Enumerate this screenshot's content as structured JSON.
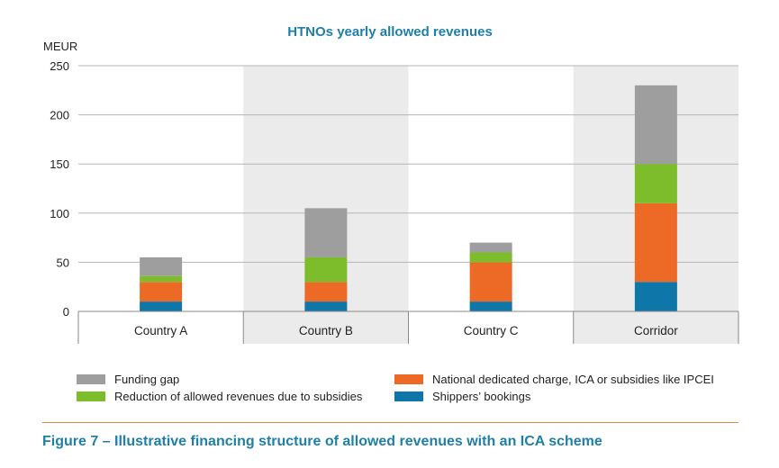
{
  "chart_data": {
    "type": "bar",
    "stacked": true,
    "title": "HTNOs yearly allowed revenues",
    "ylabel": "MEUR",
    "xlabel": "",
    "ylim": [
      0,
      250
    ],
    "yticks": [
      0,
      50,
      100,
      150,
      200,
      250
    ],
    "grid": true,
    "legend_position": "bottom",
    "categories": [
      "Country A",
      "Country B",
      "Country C",
      "Corridor"
    ],
    "series": [
      {
        "name": "Shippers’ bookings",
        "color": "#0e76a8",
        "values": [
          10,
          10,
          10,
          30
        ]
      },
      {
        "name": "National dedicated charge, ICA or subsidies like IPCEI",
        "color": "#ec6a26",
        "values": [
          20,
          20,
          40,
          80
        ]
      },
      {
        "name": "Reduction of allowed revenues due to subsidies",
        "color": "#7dbd2c",
        "values": [
          6,
          25,
          10,
          40
        ]
      },
      {
        "name": "Funding gap",
        "color": "#9e9e9e",
        "values": [
          19,
          50,
          10,
          80
        ]
      }
    ]
  },
  "legend": {
    "funding_gap": "Funding gap",
    "reduction": "Reduction of allowed revenues due to subsidies",
    "national_charge": "National dedicated charge, ICA or subsidies like IPCEI",
    "shippers": "Shippers’ bookings"
  },
  "caption": "Figure 7 – Illustrative financing structure of allowed revenues with an ICA scheme",
  "colors": {
    "title": "#1f7fa6",
    "caption": "#1f7fa6",
    "band_shading": "#ebebeb",
    "divider": "#d28a4c"
  }
}
